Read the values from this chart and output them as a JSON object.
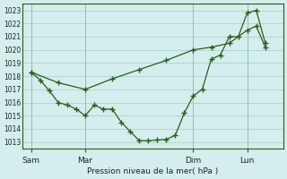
{
  "title": "Pression niveau de la mer( hPa )",
  "bg_color": "#d4eeed",
  "line_color": "#2d5a1b",
  "grid_color": "#9ecece",
  "vline_color": "#6aaa6a",
  "ylim": [
    1012.5,
    1023.5
  ],
  "yticks": [
    1013,
    1014,
    1015,
    1016,
    1017,
    1018,
    1019,
    1020,
    1021,
    1022,
    1023
  ],
  "xtick_labels": [
    "Sam",
    "Mar",
    "Dim",
    "Lun"
  ],
  "xtick_positions": [
    0,
    6,
    18,
    24
  ],
  "vline_positions": [
    0,
    6,
    18,
    24
  ],
  "xlim": [
    -1,
    28
  ],
  "line1_x": [
    0,
    1,
    2,
    3,
    4,
    5,
    6,
    7,
    8,
    9,
    10,
    11,
    12,
    13,
    14,
    15,
    16,
    17,
    18,
    19,
    20,
    21,
    22,
    23,
    24,
    25,
    26
  ],
  "line1_y": [
    1018.3,
    1017.7,
    1016.9,
    1016.0,
    1015.8,
    1015.5,
    1015.0,
    1015.8,
    1015.5,
    1015.5,
    1014.5,
    1013.8,
    1013.1,
    1013.1,
    1013.15,
    1013.2,
    1013.5,
    1015.2,
    1016.5,
    1017.0,
    1019.3,
    1019.6,
    1021.0,
    1021.0,
    1022.8,
    1023.0,
    1020.5
  ],
  "line2_x": [
    0,
    3,
    6,
    9,
    12,
    15,
    18,
    20,
    22,
    24,
    25,
    26
  ],
  "line2_y": [
    1018.3,
    1017.5,
    1017.0,
    1017.8,
    1018.5,
    1019.2,
    1020.0,
    1020.2,
    1020.5,
    1021.5,
    1021.8,
    1020.2
  ]
}
